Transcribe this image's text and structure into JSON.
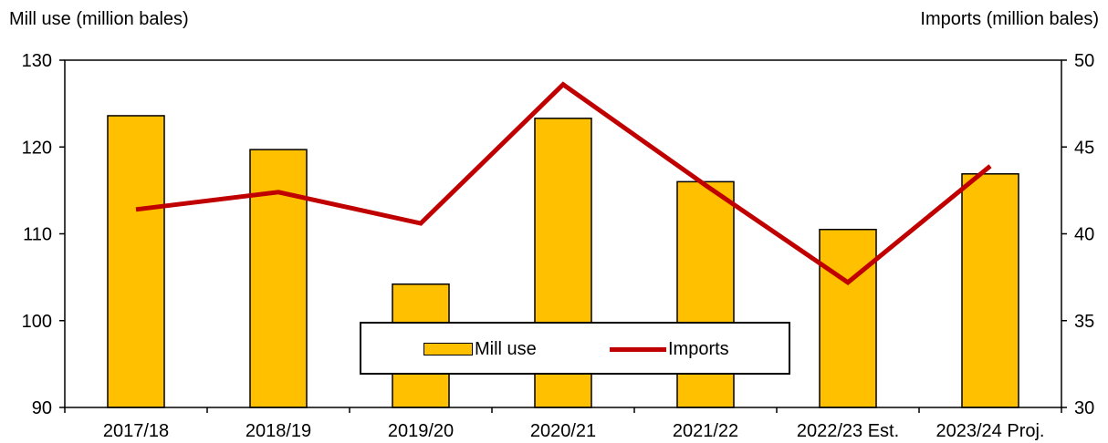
{
  "chart_data": {
    "type": "bar",
    "categories": [
      "2017/18",
      "2018/19",
      "2019/20",
      "2020/21",
      "2021/22",
      "2022/23 Est.",
      "2023/24 Proj."
    ],
    "series": [
      {
        "name": "Mill use",
        "kind": "bar",
        "axis": "left",
        "color": "#FFC000",
        "values": [
          123.6,
          119.7,
          104.2,
          123.3,
          116.0,
          110.5,
          116.9
        ]
      },
      {
        "name": "Imports",
        "kind": "line",
        "axis": "right",
        "color": "#C00000",
        "values": [
          41.4,
          42.4,
          40.6,
          48.6,
          42.8,
          37.2,
          43.9
        ]
      }
    ],
    "ylabel_left": "Mill use (million bales)",
    "ylabel_right": "Imports (million bales)",
    "ylim_left": [
      90,
      130
    ],
    "ylim_right": [
      30,
      50
    ],
    "yticks_left": [
      90,
      100,
      110,
      120,
      130
    ],
    "yticks_right": [
      30,
      35,
      40,
      45,
      50
    ],
    "legend_position": "bottom-center",
    "grid": false
  }
}
